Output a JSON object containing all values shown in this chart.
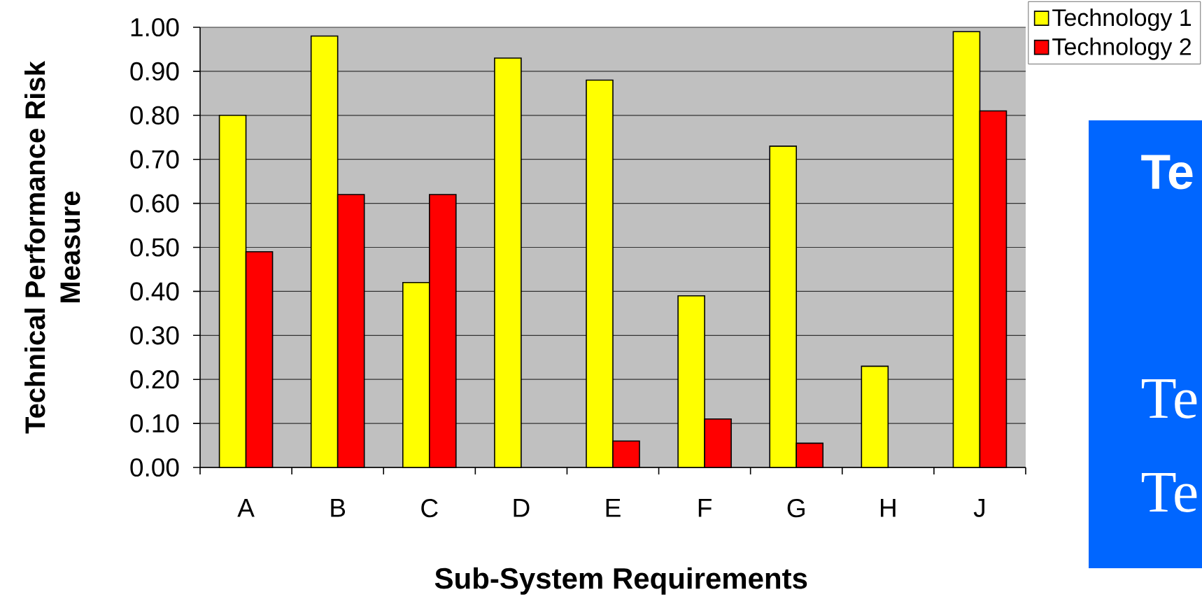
{
  "chart_data": {
    "type": "bar",
    "xlabel": "Sub-System Requirements",
    "ylabel": "Technical Performance Risk Measure",
    "categories": [
      "A",
      "B",
      "C",
      "D",
      "E",
      "F",
      "G",
      "H",
      "J"
    ],
    "series": [
      {
        "name": "Technology 1",
        "color": "#ffff00",
        "values": [
          0.8,
          0.98,
          0.42,
          0.93,
          0.88,
          0.39,
          0.73,
          0.23,
          0.99
        ]
      },
      {
        "name": "Technology 2",
        "color": "#ff0000",
        "values": [
          0.49,
          0.62,
          0.62,
          null,
          0.06,
          0.11,
          0.055,
          null,
          0.81
        ]
      }
    ],
    "ylim": [
      0,
      1
    ],
    "yticks": [
      {
        "value": 0,
        "label": "0.00"
      },
      {
        "value": 0.1,
        "label": "0.10"
      },
      {
        "value": 0.2,
        "label": "0.20"
      },
      {
        "value": 0.3,
        "label": "0.30"
      },
      {
        "value": 0.4,
        "label": "0.40"
      },
      {
        "value": 0.5,
        "label": "0.50"
      },
      {
        "value": 0.6,
        "label": "0.60"
      },
      {
        "value": 0.7,
        "label": "0.70"
      },
      {
        "value": 0.8,
        "label": "0.80"
      },
      {
        "value": 0.9,
        "label": "0.90"
      },
      {
        "value": 1,
        "label": "1.00"
      }
    ],
    "grid": "y",
    "legend": "top right",
    "annotations": [
      "Te",
      "Te",
      "Te"
    ]
  }
}
